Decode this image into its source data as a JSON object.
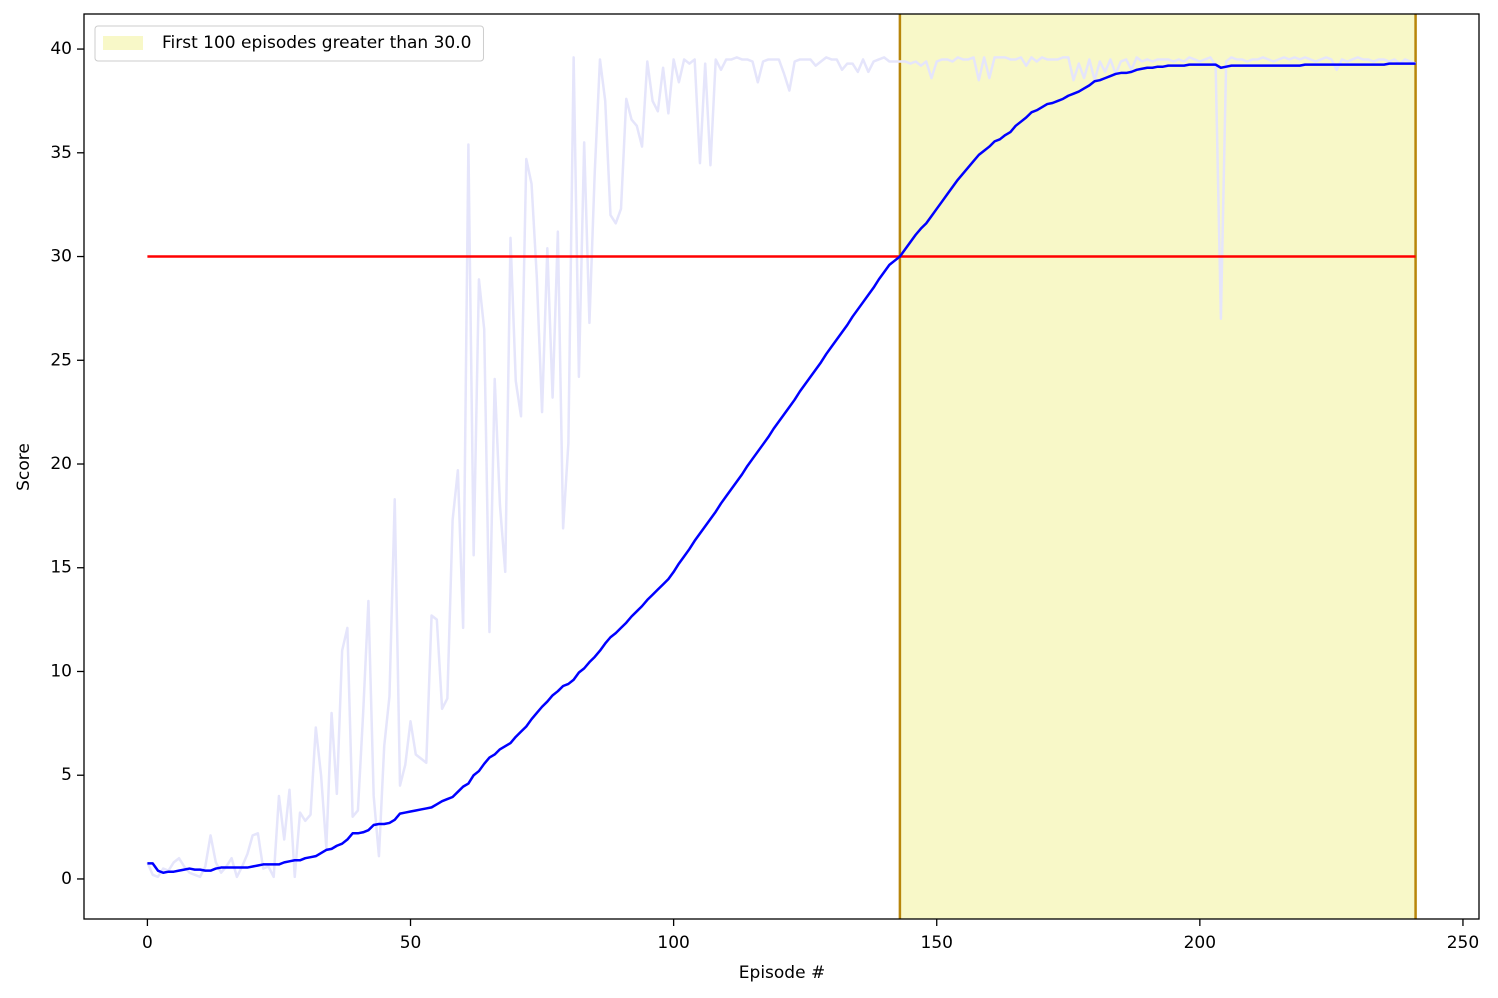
{
  "chart_data": {
    "type": "line",
    "xlabel": "Episode #",
    "ylabel": "Score",
    "xlim": [
      -12.05,
      253.05
    ],
    "ylim": [
      -1.93,
      41.69
    ],
    "xticks": [
      0,
      50,
      100,
      150,
      200,
      250
    ],
    "yticks": [
      0,
      5,
      10,
      15,
      20,
      25,
      30,
      35,
      40
    ],
    "x": [
      0,
      1,
      2,
      3,
      4,
      5,
      6,
      7,
      8,
      9,
      10,
      11,
      12,
      13,
      14,
      15,
      16,
      17,
      18,
      19,
      20,
      21,
      22,
      23,
      24,
      25,
      26,
      27,
      28,
      29,
      30,
      31,
      32,
      33,
      34,
      35,
      36,
      37,
      38,
      39,
      40,
      41,
      42,
      43,
      44,
      45,
      46,
      47,
      48,
      49,
      50,
      51,
      52,
      53,
      54,
      55,
      56,
      57,
      58,
      59,
      60,
      61,
      62,
      63,
      64,
      65,
      66,
      67,
      68,
      69,
      70,
      71,
      72,
      73,
      74,
      75,
      76,
      77,
      78,
      79,
      80,
      81,
      82,
      83,
      84,
      85,
      86,
      87,
      88,
      89,
      90,
      91,
      92,
      93,
      94,
      95,
      96,
      97,
      98,
      99,
      100,
      101,
      102,
      103,
      104,
      105,
      106,
      107,
      108,
      109,
      110,
      111,
      112,
      113,
      114,
      115,
      116,
      117,
      118,
      119,
      120,
      121,
      122,
      123,
      124,
      125,
      126,
      127,
      128,
      129,
      130,
      131,
      132,
      133,
      134,
      135,
      136,
      137,
      138,
      139,
      140,
      141,
      142,
      143,
      144,
      145,
      146,
      147,
      148,
      149,
      150,
      151,
      152,
      153,
      154,
      155,
      156,
      157,
      158,
      159,
      160,
      161,
      162,
      163,
      164,
      165,
      166,
      167,
      168,
      169,
      170,
      171,
      172,
      173,
      174,
      175,
      176,
      177,
      178,
      179,
      180,
      181,
      182,
      183,
      184,
      185,
      186,
      187,
      188,
      189,
      190,
      191,
      192,
      193,
      194,
      195,
      196,
      197,
      198,
      199,
      200,
      201,
      202,
      203,
      204,
      205,
      206,
      207,
      208,
      209,
      210,
      211,
      212,
      213,
      214,
      215,
      216,
      217,
      218,
      219,
      220,
      221,
      222,
      223,
      224,
      225,
      226,
      227,
      228,
      229,
      230,
      231,
      232,
      233,
      234,
      235,
      236,
      237,
      238,
      239,
      240,
      241
    ],
    "series": [
      {
        "color": "#e5e5fb",
        "values": [
          0.8,
          0.2,
          0.1,
          0.5,
          0.4,
          0.8,
          1.0,
          0.6,
          0.3,
          0.2,
          0.1,
          0.6,
          2.1,
          0.8,
          0.3,
          0.6,
          1.0,
          0.1,
          0.6,
          1.2,
          2.1,
          2.2,
          0.5,
          0.6,
          0.1,
          4.0,
          1.9,
          4.3,
          0.1,
          3.2,
          2.8,
          3.1,
          7.3,
          5.0,
          1.5,
          8.0,
          4.1,
          11.0,
          12.1,
          3.0,
          3.3,
          8.0,
          13.4,
          4.0,
          1.1,
          6.4,
          8.8,
          18.3,
          4.5,
          5.5,
          7.6,
          6.0,
          5.8,
          5.6,
          12.7,
          12.5,
          8.2,
          8.7,
          17.3,
          19.7,
          12.1,
          35.4,
          15.6,
          28.9,
          26.5,
          11.9,
          24.1,
          18.0,
          14.8,
          30.9,
          24.0,
          22.3,
          34.7,
          33.5,
          29.0,
          22.5,
          30.4,
          23.2,
          31.2,
          16.9,
          21.0,
          39.6,
          24.2,
          35.5,
          26.8,
          34.0,
          39.5,
          37.5,
          32.0,
          31.6,
          32.3,
          37.6,
          36.6,
          36.3,
          35.3,
          39.4,
          37.5,
          37.0,
          39.1,
          36.9,
          39.5,
          38.4,
          39.5,
          39.3,
          39.5,
          34.5,
          39.3,
          34.4,
          39.5,
          39.0,
          39.5,
          39.5,
          39.6,
          39.5,
          39.5,
          39.4,
          38.4,
          39.4,
          39.5,
          39.5,
          39.5,
          38.8,
          38.0,
          39.4,
          39.5,
          39.5,
          39.5,
          39.2,
          39.4,
          39.6,
          39.5,
          39.5,
          39.0,
          39.3,
          39.3,
          38.9,
          39.5,
          38.9,
          39.4,
          39.5,
          39.6,
          39.4,
          39.4,
          39.4,
          39.4,
          39.3,
          39.4,
          39.2,
          39.4,
          38.6,
          39.4,
          39.5,
          39.5,
          39.4,
          39.6,
          39.5,
          39.5,
          39.6,
          38.5,
          39.6,
          38.6,
          39.6,
          39.6,
          39.6,
          39.5,
          39.5,
          39.6,
          39.2,
          39.6,
          39.4,
          39.6,
          39.5,
          39.5,
          39.5,
          39.6,
          39.6,
          38.5,
          39.3,
          38.6,
          39.5,
          38.5,
          39.4,
          38.9,
          39.5,
          38.8,
          39.4,
          39.5,
          39.0,
          39.6,
          39.4,
          39.5,
          39.4,
          39.5,
          39.5,
          39.5,
          39.4,
          39.5,
          39.4,
          39.6,
          39.5,
          39.4,
          39.5,
          39.6,
          39.2,
          27.0,
          39.4,
          39.6,
          39.5,
          39.5,
          39.4,
          39.5,
          39.5,
          39.6,
          39.5,
          39.4,
          39.5,
          39.6,
          39.5,
          39.6,
          39.5,
          39.6,
          39.5,
          39.4,
          39.5,
          39.6,
          39.5,
          39.0,
          39.5,
          39.4,
          39.5,
          39.6,
          39.5,
          39.5,
          39.4,
          39.5,
          39.5,
          39.4,
          39.5,
          39.3,
          39.5,
          39.4,
          39.3
        ]
      },
      {
        "color": "#0000ff",
        "values": [
          0.75,
          0.75,
          0.4,
          0.3,
          0.35,
          0.35,
          0.4,
          0.45,
          0.5,
          0.45,
          0.45,
          0.4,
          0.4,
          0.5,
          0.55,
          0.55,
          0.55,
          0.55,
          0.55,
          0.55,
          0.6,
          0.65,
          0.7,
          0.7,
          0.7,
          0.7,
          0.8,
          0.85,
          0.9,
          0.9,
          1.0,
          1.05,
          1.1,
          1.25,
          1.4,
          1.45,
          1.6,
          1.7,
          1.9,
          2.2,
          2.2,
          2.25,
          2.35,
          2.6,
          2.65,
          2.65,
          2.7,
          2.85,
          3.15,
          3.2,
          3.25,
          3.3,
          3.35,
          3.4,
          3.45,
          3.6,
          3.75,
          3.85,
          3.95,
          4.2,
          4.45,
          4.6,
          5.0,
          5.2,
          5.55,
          5.85,
          6.0,
          6.25,
          6.4,
          6.55,
          6.85,
          7.1,
          7.35,
          7.7,
          8.0,
          8.3,
          8.55,
          8.85,
          9.05,
          9.3,
          9.4,
          9.6,
          9.95,
          10.15,
          10.45,
          10.7,
          11.0,
          11.35,
          11.65,
          11.85,
          12.1,
          12.35,
          12.65,
          12.9,
          13.15,
          13.45,
          13.7,
          13.95,
          14.2,
          14.45,
          14.8,
          15.2,
          15.55,
          15.9,
          16.3,
          16.65,
          17.0,
          17.35,
          17.7,
          18.1,
          18.45,
          18.8,
          19.15,
          19.5,
          19.9,
          20.25,
          20.6,
          20.95,
          21.3,
          21.7,
          22.05,
          22.4,
          22.75,
          23.1,
          23.5,
          23.85,
          24.2,
          24.55,
          24.9,
          25.3,
          25.65,
          26.0,
          26.35,
          26.7,
          27.1,
          27.45,
          27.8,
          28.15,
          28.5,
          28.9,
          29.25,
          29.6,
          29.8,
          30.0,
          30.35,
          30.7,
          31.05,
          31.35,
          31.6,
          31.95,
          32.3,
          32.65,
          33.0,
          33.35,
          33.7,
          34.0,
          34.3,
          34.6,
          34.9,
          35.1,
          35.3,
          35.55,
          35.65,
          35.85,
          36.0,
          36.3,
          36.5,
          36.7,
          36.95,
          37.05,
          37.2,
          37.35,
          37.4,
          37.5,
          37.6,
          37.75,
          37.85,
          37.95,
          38.1,
          38.25,
          38.45,
          38.5,
          38.6,
          38.7,
          38.8,
          38.85,
          38.85,
          38.9,
          39.0,
          39.05,
          39.1,
          39.1,
          39.15,
          39.15,
          39.2,
          39.2,
          39.2,
          39.2,
          39.25,
          39.25,
          39.25,
          39.25,
          39.25,
          39.25,
          39.1,
          39.15,
          39.2,
          39.2,
          39.2,
          39.2,
          39.2,
          39.2,
          39.2,
          39.2,
          39.2,
          39.2,
          39.2,
          39.2,
          39.2,
          39.2,
          39.25,
          39.25,
          39.25,
          39.25,
          39.25,
          39.25,
          39.25,
          39.25,
          39.25,
          39.25,
          39.25,
          39.25,
          39.25,
          39.25,
          39.25,
          39.25,
          39.3,
          39.3,
          39.3,
          39.3,
          39.3,
          39.3
        ]
      }
    ],
    "threshold": {
      "value": 30,
      "color": "#ff0000"
    },
    "span": {
      "start": 143,
      "end": 241,
      "fill": "#f8f8c8",
      "edge_color": "#b8860b",
      "name": "First 100 episodes greater than 30.0"
    },
    "legend": "upper left"
  }
}
